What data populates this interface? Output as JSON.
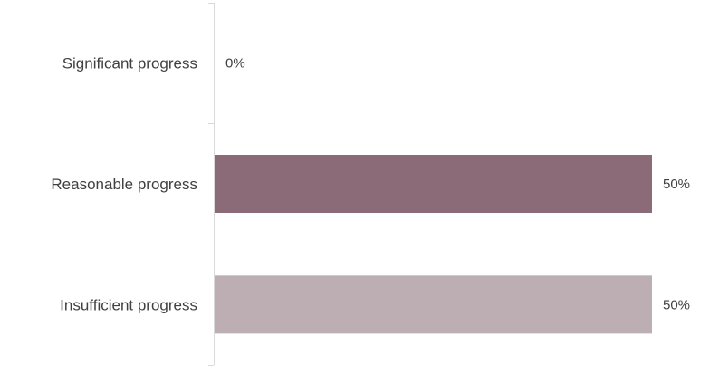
{
  "chart_data": {
    "type": "bar",
    "orientation": "horizontal",
    "categories": [
      "Significant progress",
      "Reasonable progress",
      "Insufficient progress"
    ],
    "values": [
      0,
      50,
      50
    ],
    "data_labels": [
      "0%",
      "50%",
      "50%"
    ],
    "colors": [
      "#8c6b78",
      "#8c6b78",
      "#bdaeb3"
    ],
    "xlim": [
      0,
      50
    ],
    "title": "",
    "xlabel": "",
    "ylabel": "",
    "grid": false,
    "legend": "none"
  }
}
